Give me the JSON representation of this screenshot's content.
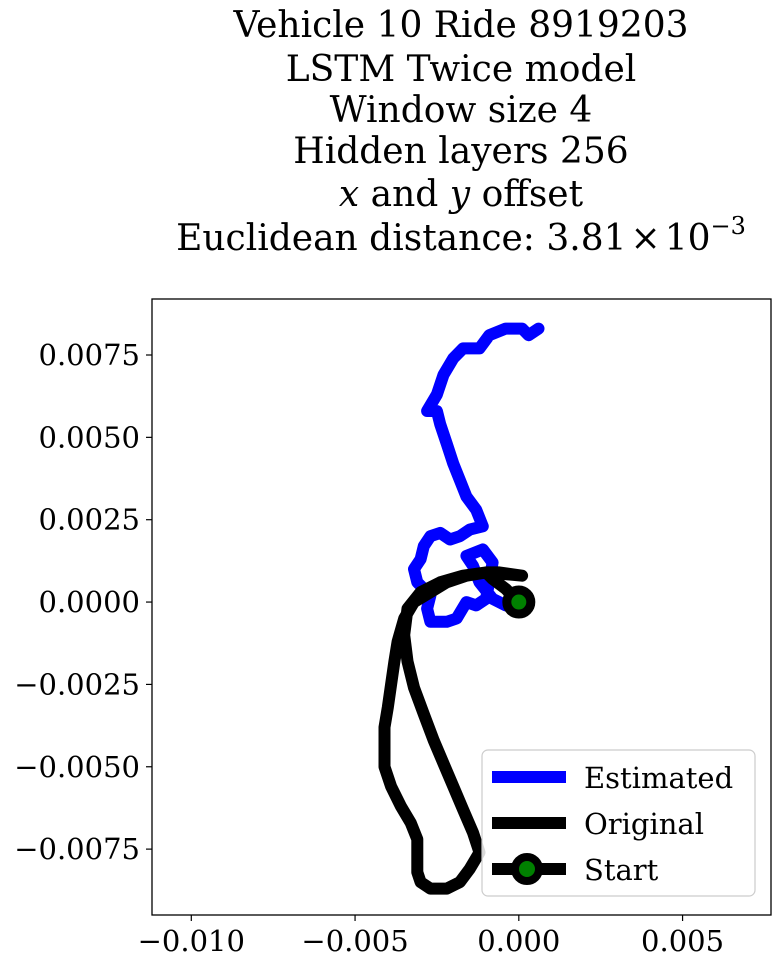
{
  "chart_data": {
    "type": "line",
    "title_lines": [
      "Vehicle 10 Ride 8919203",
      "LSTM Twice model",
      "Window size 4",
      "Hidden layers 256"
    ],
    "title_offset": {
      "x_var": "x",
      "mid": " and ",
      "y_var": "y",
      "tail": " offset"
    },
    "title_distance": {
      "prefix": "Euclidean distance: ",
      "mantissa": "3.81",
      "times": "×",
      "base": "10",
      "exponent": "−3"
    },
    "xlim": [
      -0.0112,
      0.0077
    ],
    "ylim": [
      -0.0095,
      0.0092
    ],
    "x_ticks": [
      -0.01,
      -0.005,
      0.0,
      0.005
    ],
    "x_tick_labels": [
      "−0.010",
      "−0.005",
      "0.000",
      "0.005"
    ],
    "y_ticks": [
      0.0075,
      0.005,
      0.0025,
      0.0,
      -0.0025,
      -0.005,
      -0.0075
    ],
    "y_tick_labels": [
      "0.0075",
      "0.0050",
      "0.0025",
      "0.0000",
      "−0.0025",
      "−0.0050",
      "−0.0075"
    ],
    "grid": false,
    "legend_position": "lower-right",
    "series": [
      {
        "name": "Estimated",
        "color": "#0000ff",
        "points": [
          [
            0.0,
            0.0
          ],
          [
            -0.0004,
            -0.0001
          ],
          [
            -0.0008,
            0.0001
          ],
          [
            -0.0012,
            0.0006
          ],
          [
            -0.0014,
            0.0011
          ],
          [
            -0.0016,
            0.0014
          ],
          [
            -0.0011,
            0.0016
          ],
          [
            -0.0008,
            0.0012
          ],
          [
            -0.001,
            0.0001
          ],
          [
            -0.0013,
            -0.0001
          ],
          [
            -0.0016,
            0.0
          ],
          [
            -0.0019,
            -0.0005
          ],
          [
            -0.0022,
            -0.0006
          ],
          [
            -0.0027,
            -0.0006
          ],
          [
            -0.0028,
            -0.0002
          ],
          [
            -0.0027,
            0.0002
          ],
          [
            -0.0031,
            0.0006
          ],
          [
            -0.0032,
            0.001
          ],
          [
            -0.003,
            0.0013
          ],
          [
            -0.0029,
            0.0017
          ],
          [
            -0.0027,
            0.002
          ],
          [
            -0.0024,
            0.0021
          ],
          [
            -0.0021,
            0.0019
          ],
          [
            -0.0018,
            0.002
          ],
          [
            -0.0015,
            0.0022
          ],
          [
            -0.0011,
            0.0023
          ],
          [
            -0.0013,
            0.0028
          ],
          [
            -0.0016,
            0.0032
          ],
          [
            -0.0018,
            0.0037
          ],
          [
            -0.002,
            0.0042
          ],
          [
            -0.0022,
            0.0048
          ],
          [
            -0.0024,
            0.0054
          ],
          [
            -0.0025,
            0.0058
          ],
          [
            -0.0028,
            0.0058
          ],
          [
            -0.0025,
            0.0063
          ],
          [
            -0.0023,
            0.0069
          ],
          [
            -0.002,
            0.0074
          ],
          [
            -0.0017,
            0.0077
          ],
          [
            -0.0012,
            0.0077
          ],
          [
            -0.0009,
            0.0081
          ],
          [
            -0.0004,
            0.0083
          ],
          [
            0.0001,
            0.0083
          ],
          [
            0.0003,
            0.0081
          ],
          [
            0.0006,
            0.0083
          ]
        ]
      },
      {
        "name": "Original",
        "color": "#000000",
        "points": [
          [
            0.0,
            0.0
          ],
          [
            -0.0004,
            0.0004
          ],
          [
            -0.0008,
            0.0007
          ],
          [
            -0.001,
            0.0009
          ],
          [
            -0.0006,
            0.0009
          ],
          [
            0.0001,
            0.0008
          ],
          [
            -0.001,
            0.0009
          ],
          [
            -0.0016,
            0.0008
          ],
          [
            -0.0022,
            0.0006
          ],
          [
            -0.0027,
            0.0003
          ],
          [
            -0.0032,
            0.0
          ],
          [
            -0.0035,
            -0.0005
          ],
          [
            -0.0037,
            -0.0012
          ],
          [
            -0.0038,
            -0.0018
          ],
          [
            -0.0039,
            -0.0025
          ],
          [
            -0.004,
            -0.0032
          ],
          [
            -0.0041,
            -0.0038
          ],
          [
            -0.0041,
            -0.0044
          ],
          [
            -0.0041,
            -0.005
          ],
          [
            -0.0039,
            -0.0056
          ],
          [
            -0.0036,
            -0.0062
          ],
          [
            -0.0033,
            -0.0067
          ],
          [
            -0.0031,
            -0.0072
          ],
          [
            -0.0031,
            -0.0078
          ],
          [
            -0.0031,
            -0.0082
          ],
          [
            -0.003,
            -0.0085
          ],
          [
            -0.0027,
            -0.0087
          ],
          [
            -0.0022,
            -0.0087
          ],
          [
            -0.0018,
            -0.0085
          ],
          [
            -0.0015,
            -0.0081
          ],
          [
            -0.0012,
            -0.0076
          ],
          [
            -0.0014,
            -0.007
          ],
          [
            -0.0017,
            -0.0063
          ],
          [
            -0.002,
            -0.0056
          ],
          [
            -0.0023,
            -0.0049
          ],
          [
            -0.0026,
            -0.0042
          ],
          [
            -0.0029,
            -0.0034
          ],
          [
            -0.0032,
            -0.0026
          ],
          [
            -0.0034,
            -0.0018
          ],
          [
            -0.0035,
            -0.001
          ],
          [
            -0.0034,
            -0.0002
          ],
          [
            -0.003,
            0.0003
          ],
          [
            -0.0024,
            0.0006
          ],
          [
            -0.0017,
            0.0008
          ],
          [
            -0.001,
            0.0009
          ]
        ]
      }
    ],
    "start_marker": {
      "name": "Start",
      "x": 0.0,
      "y": 0.0,
      "edge_color": "#000000",
      "face_color": "#008000"
    },
    "legend": [
      "Estimated",
      "Original",
      "Start"
    ]
  }
}
